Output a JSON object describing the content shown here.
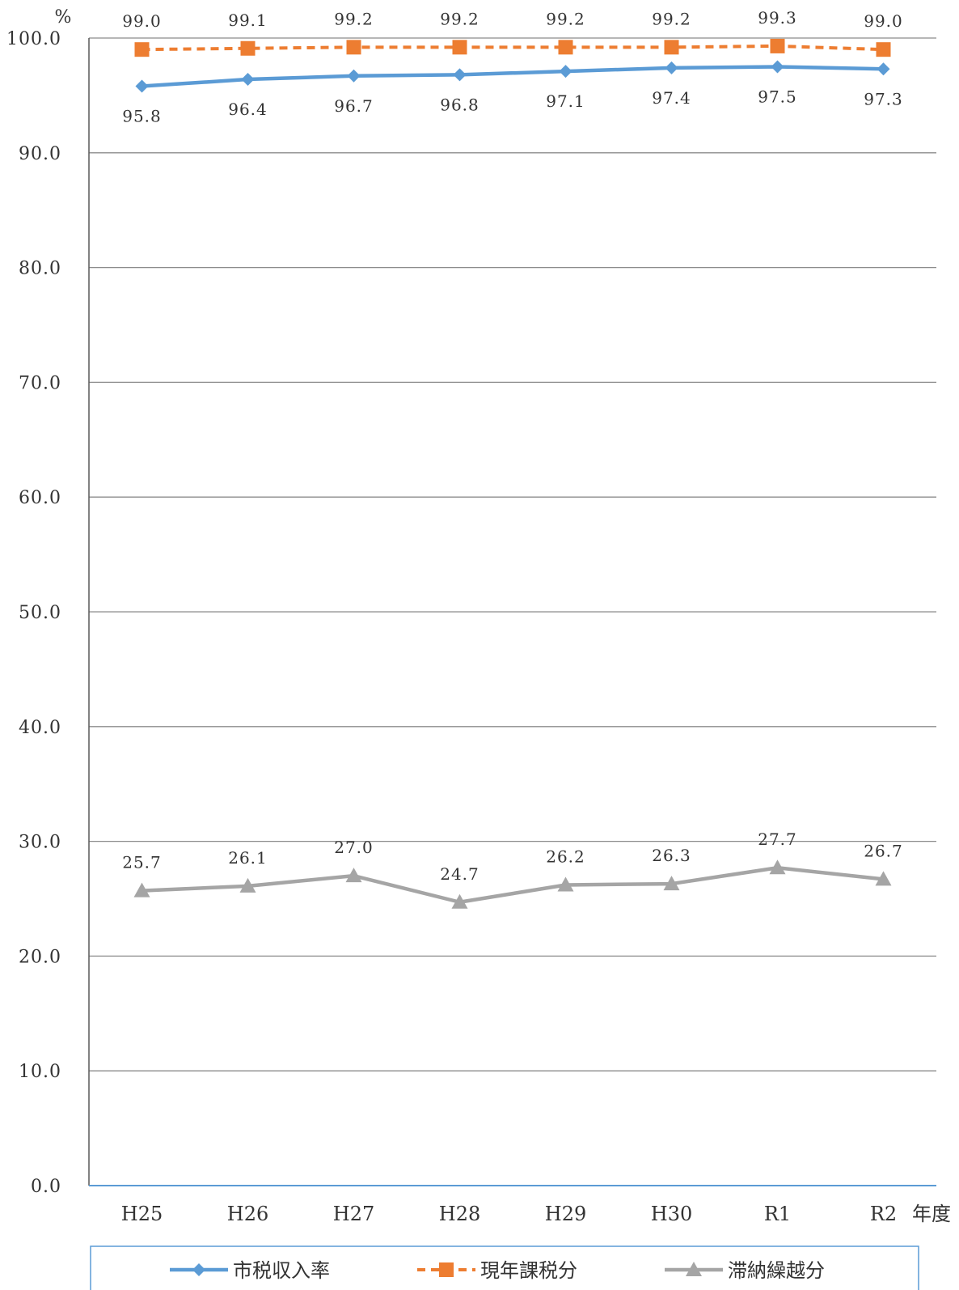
{
  "chart_data": {
    "type": "line",
    "categories": [
      "H25",
      "H26",
      "H27",
      "H28",
      "H29",
      "H30",
      "R1",
      "R2"
    ],
    "y_unit": "%",
    "x_unit": "年度",
    "ylim": [
      0,
      100
    ],
    "y_ticks": [
      "0.0",
      "10.0",
      "20.0",
      "30.0",
      "40.0",
      "50.0",
      "60.0",
      "70.0",
      "80.0",
      "90.0",
      "100.0"
    ],
    "grid": true,
    "legend_position": "bottom",
    "series": [
      {
        "name": "市税収入率",
        "values": [
          95.8,
          96.4,
          96.7,
          96.8,
          97.1,
          97.4,
          97.5,
          97.3
        ],
        "labels": [
          "95.8",
          "96.4",
          "96.7",
          "96.8",
          "97.1",
          "97.4",
          "97.5",
          "97.3"
        ],
        "color": "#5B9BD5",
        "marker": "diamond",
        "dash": "solid",
        "label_side": "below"
      },
      {
        "name": "現年課税分",
        "values": [
          99.0,
          99.1,
          99.2,
          99.2,
          99.2,
          99.2,
          99.3,
          99.0
        ],
        "labels": [
          "99.0",
          "99.1",
          "99.2",
          "99.2",
          "99.2",
          "99.2",
          "99.3",
          "99.0"
        ],
        "color": "#ED7D31",
        "marker": "square",
        "dash": "dashed",
        "label_side": "above"
      },
      {
        "name": "滞納繰越分",
        "values": [
          25.7,
          26.1,
          27.0,
          24.7,
          26.2,
          26.3,
          27.7,
          26.7
        ],
        "labels": [
          "25.7",
          "26.1",
          "27.0",
          "24.7",
          "26.2",
          "26.3",
          "27.7",
          "26.7"
        ],
        "color": "#A5A5A5",
        "marker": "triangle",
        "dash": "solid",
        "label_side": "above"
      }
    ]
  }
}
